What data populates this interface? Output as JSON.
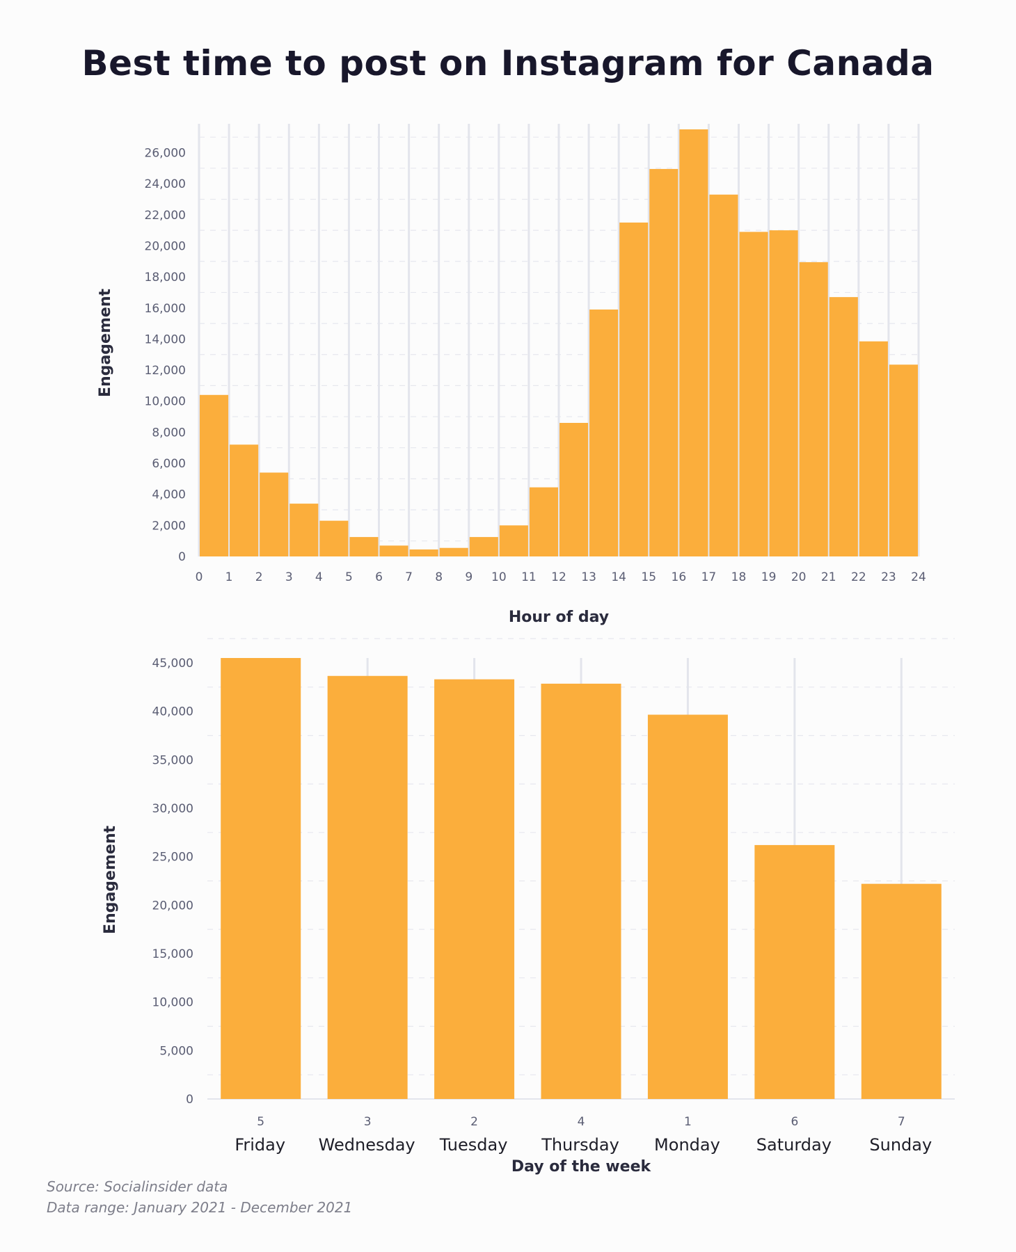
{
  "title": "Best time to post on Instagram for Canada",
  "footer": {
    "source": "Source: Socialinsider data",
    "range": "Data range: January 2021 - December 2021"
  },
  "colors": {
    "bar": "#fbae3c",
    "grid": "#e3e5ec",
    "gridDash": "#e6e7ee"
  },
  "chart_data": [
    {
      "type": "bar",
      "title": "",
      "xlabel": "Hour of day",
      "ylabel": "Engagement",
      "x_ticks": [
        "0",
        "1",
        "2",
        "3",
        "4",
        "5",
        "6",
        "7",
        "8",
        "9",
        "10",
        "11",
        "12",
        "13",
        "14",
        "15",
        "16",
        "17",
        "18",
        "19",
        "20",
        "21",
        "22",
        "23",
        "24"
      ],
      "y_ticks": [
        "0",
        "2,000",
        "4,000",
        "6,000",
        "8,000",
        "10,000",
        "12,000",
        "14,000",
        "16,000",
        "18,000",
        "20,000",
        "22,000",
        "24,000",
        "26,000"
      ],
      "y_tick_values": [
        0,
        2000,
        4000,
        6000,
        8000,
        10000,
        12000,
        14000,
        16000,
        18000,
        20000,
        22000,
        24000,
        26000
      ],
      "ylim": [
        0,
        27500
      ],
      "bins": [
        0,
        1,
        2,
        3,
        4,
        5,
        6,
        7,
        8,
        9,
        10,
        11,
        12,
        13,
        14,
        15,
        16,
        17,
        18,
        19,
        20,
        21,
        22,
        23
      ],
      "values": [
        10400,
        7200,
        5400,
        3400,
        2300,
        1250,
        700,
        450,
        550,
        1250,
        2000,
        4450,
        8600,
        15900,
        21500,
        24950,
        27500,
        23300,
        20900,
        21000,
        18950,
        16700,
        13850,
        12350
      ],
      "grid": true
    },
    {
      "type": "bar",
      "title": "",
      "xlabel": "Day of the week",
      "ylabel": "Engagement",
      "categories": [
        "5",
        "3",
        "2",
        "4",
        "1",
        "6",
        "7"
      ],
      "category_names": [
        "Friday",
        "Wednesday",
        "Tuesday",
        "Thursday",
        "Monday",
        "Saturday",
        "Sunday"
      ],
      "values": [
        45500,
        43650,
        43300,
        42850,
        39650,
        26200,
        22200
      ],
      "y_ticks": [
        "0",
        "5,000",
        "10,000",
        "15,000",
        "20,000",
        "25,000",
        "30,000",
        "35,000",
        "40,000",
        "45,000"
      ],
      "y_tick_values": [
        0,
        5000,
        10000,
        15000,
        20000,
        25000,
        30000,
        35000,
        40000,
        45000
      ],
      "ylim": [
        0,
        45500
      ],
      "grid": true
    }
  ]
}
